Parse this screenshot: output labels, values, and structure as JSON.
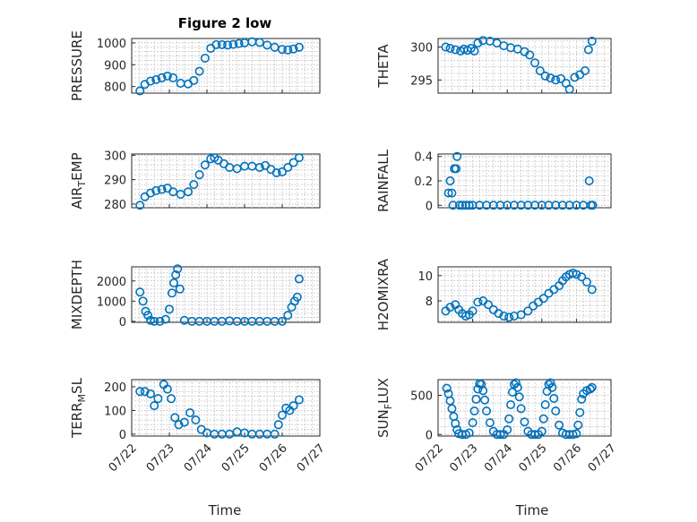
{
  "figure": {
    "title": "Figure 2 low",
    "marker_color": "#0072BD"
  },
  "chart_data": [
    {
      "type": "scatter",
      "title": "Figure 2 low",
      "ylabel": "PRESSURE",
      "sub": "",
      "ylim": [
        770,
        1020
      ],
      "yticks": [
        800,
        900,
        1000
      ],
      "xlim": [
        0,
        5
      ],
      "x": [
        0.22,
        0.35,
        0.5,
        0.65,
        0.8,
        0.95,
        1.1,
        1.3,
        1.5,
        1.65,
        1.8,
        1.95,
        2.1,
        2.25,
        2.4,
        2.55,
        2.7,
        2.85,
        3.0,
        3.2,
        3.4,
        3.6,
        3.8,
        4.0,
        4.15,
        4.3,
        4.45
      ],
      "y": [
        780,
        810,
        825,
        832,
        840,
        848,
        840,
        815,
        812,
        828,
        870,
        930,
        975,
        992,
        992,
        990,
        993,
        997,
        1000,
        1005,
        1002,
        990,
        980,
        970,
        968,
        972,
        980
      ]
    },
    {
      "type": "scatter",
      "ylabel": "THETA",
      "sub": "",
      "ylim": [
        293,
        301.3
      ],
      "yticks": [
        295,
        300
      ],
      "xlim": [
        0,
        5
      ],
      "x": [
        0.22,
        0.35,
        0.5,
        0.65,
        0.75,
        0.85,
        0.95,
        1.05,
        1.15,
        1.3,
        1.5,
        1.7,
        1.9,
        2.1,
        2.3,
        2.5,
        2.65,
        2.8,
        2.95,
        3.1,
        3.25,
        3.4,
        3.55,
        3.7,
        3.8,
        3.95,
        4.1,
        4.25,
        4.35,
        4.45
      ],
      "y": [
        300,
        299.8,
        299.6,
        299.4,
        299.7,
        299.5,
        299.8,
        299.4,
        300.6,
        301.0,
        300.9,
        300.6,
        300.2,
        299.9,
        299.7,
        299.3,
        298.8,
        297.6,
        296.4,
        295.6,
        295.3,
        295.0,
        295.2,
        294.5,
        293.6,
        295.4,
        295.8,
        296.4,
        299.6,
        300.9
      ]
    },
    {
      "type": "scatter",
      "ylabel": "AIR",
      "sub": "T",
      "ylabel_tail": "EMP",
      "ylim": [
        278.5,
        300.5
      ],
      "yticks": [
        280,
        290,
        300
      ],
      "xlim": [
        0,
        5
      ],
      "x": [
        0.22,
        0.35,
        0.5,
        0.65,
        0.8,
        0.95,
        1.1,
        1.3,
        1.5,
        1.65,
        1.8,
        1.95,
        2.1,
        2.2,
        2.3,
        2.45,
        2.6,
        2.8,
        3.0,
        3.2,
        3.4,
        3.55,
        3.7,
        3.85,
        4.0,
        4.15,
        4.3,
        4.45
      ],
      "y": [
        279.5,
        283,
        284.5,
        285.5,
        286,
        286.5,
        285,
        284,
        285,
        288,
        292,
        296,
        298.5,
        299,
        298,
        296.5,
        295,
        294.5,
        295.5,
        295.5,
        295,
        295.8,
        294.2,
        292.8,
        293.2,
        295,
        297,
        299
      ]
    },
    {
      "type": "scatter",
      "ylabel": "RAINFALL",
      "sub": "",
      "ylim": [
        -0.02,
        0.42
      ],
      "yticks": [
        0,
        0.2,
        0.4
      ],
      "xlim": [
        0,
        5
      ],
      "x": [
        0.3,
        0.35,
        0.4,
        0.43,
        0.47,
        0.52,
        0.55,
        0.62,
        0.7,
        0.8,
        0.9,
        1.0,
        1.2,
        1.4,
        1.6,
        1.8,
        2.0,
        2.2,
        2.4,
        2.6,
        2.8,
        3.0,
        3.2,
        3.4,
        3.6,
        3.8,
        4.0,
        4.2,
        4.37,
        4.42,
        4.47
      ],
      "y": [
        0.1,
        0.2,
        0.1,
        0,
        0.3,
        0.3,
        0.4,
        0,
        0,
        0,
        0,
        0,
        0,
        0,
        0,
        0,
        0,
        0,
        0,
        0,
        0,
        0,
        0,
        0,
        0,
        0,
        0,
        0,
        0.2,
        0,
        0
      ]
    },
    {
      "type": "scatter",
      "ylabel": "MIXDEPTH",
      "sub": "",
      "ylim": [
        -50,
        2700
      ],
      "yticks": [
        0,
        1000,
        2000
      ],
      "xlim": [
        0,
        5
      ],
      "x": [
        0.22,
        0.3,
        0.37,
        0.43,
        0.5,
        0.6,
        0.75,
        0.9,
        1.0,
        1.07,
        1.12,
        1.17,
        1.22,
        1.28,
        1.4,
        1.6,
        1.8,
        2.0,
        2.2,
        2.4,
        2.6,
        2.8,
        3.0,
        3.2,
        3.4,
        3.6,
        3.8,
        4.0,
        4.15,
        4.25,
        4.33,
        4.4,
        4.45
      ],
      "y": [
        1450,
        1000,
        500,
        300,
        50,
        0,
        0,
        100,
        600,
        1400,
        1900,
        2300,
        2600,
        1600,
        50,
        0,
        0,
        0,
        0,
        0,
        20,
        0,
        0,
        0,
        0,
        0,
        0,
        0,
        300,
        700,
        1000,
        1200,
        2100
      ]
    },
    {
      "type": "scatter",
      "ylabel": "H2OMIXRA",
      "sub": "",
      "ylim": [
        6.3,
        10.7
      ],
      "yticks": [
        8,
        10
      ],
      "xlim": [
        0,
        5
      ],
      "x": [
        0.22,
        0.35,
        0.5,
        0.6,
        0.7,
        0.8,
        0.9,
        1.0,
        1.15,
        1.3,
        1.45,
        1.6,
        1.75,
        1.9,
        2.05,
        2.2,
        2.4,
        2.6,
        2.75,
        2.9,
        3.05,
        3.2,
        3.35,
        3.5,
        3.6,
        3.7,
        3.8,
        3.9,
        4.0,
        4.15,
        4.3,
        4.45
      ],
      "y": [
        7.2,
        7.5,
        7.7,
        7.3,
        7.0,
        6.8,
        6.9,
        7.2,
        7.9,
        8.0,
        7.7,
        7.3,
        7.0,
        6.8,
        6.7,
        6.8,
        6.9,
        7.2,
        7.6,
        7.9,
        8.2,
        8.6,
        8.9,
        9.2,
        9.6,
        9.9,
        10.1,
        10.2,
        10.1,
        9.9,
        9.5,
        8.9
      ]
    },
    {
      "type": "scatter",
      "ylabel": "TERR",
      "sub": "M",
      "ylabel_tail": "SL",
      "ylim": [
        -8,
        230
      ],
      "yticks": [
        0,
        100,
        200
      ],
      "xlim": [
        0,
        5
      ],
      "x": [
        0.22,
        0.35,
        0.5,
        0.6,
        0.7,
        0.85,
        0.95,
        1.05,
        1.15,
        1.25,
        1.4,
        1.55,
        1.7,
        1.85,
        2.0,
        2.2,
        2.4,
        2.6,
        2.8,
        3.0,
        3.2,
        3.4,
        3.6,
        3.8,
        3.9,
        4.0,
        4.1,
        4.2,
        4.3,
        4.45
      ],
      "y": [
        180,
        180,
        170,
        120,
        150,
        210,
        190,
        150,
        70,
        40,
        50,
        90,
        60,
        20,
        5,
        0,
        0,
        0,
        10,
        5,
        0,
        0,
        0,
        0,
        40,
        80,
        110,
        100,
        120,
        145
      ]
    },
    {
      "type": "scatter",
      "ylabel": "SUN",
      "sub": "F",
      "ylabel_tail": "LUX",
      "ylim": [
        -20,
        700
      ],
      "yticks": [
        0,
        500
      ],
      "xlim": [
        0,
        5
      ],
      "x": [
        0.25,
        0.3,
        0.35,
        0.4,
        0.45,
        0.5,
        0.55,
        0.6,
        0.7,
        0.8,
        0.9,
        1.0,
        1.05,
        1.1,
        1.15,
        1.2,
        1.25,
        1.3,
        1.35,
        1.4,
        1.5,
        1.6,
        1.7,
        1.8,
        1.9,
        2.0,
        2.05,
        2.1,
        2.15,
        2.2,
        2.25,
        2.3,
        2.35,
        2.4,
        2.5,
        2.6,
        2.7,
        2.8,
        2.9,
        3.0,
        3.05,
        3.1,
        3.15,
        3.2,
        3.25,
        3.3,
        3.35,
        3.4,
        3.5,
        3.6,
        3.7,
        3.8,
        3.9,
        4.0,
        4.05,
        4.1,
        4.15,
        4.2,
        4.3,
        4.4,
        4.45
      ],
      "y": [
        590,
        520,
        430,
        330,
        230,
        140,
        60,
        10,
        0,
        0,
        20,
        150,
        300,
        450,
        580,
        650,
        640,
        560,
        440,
        300,
        150,
        40,
        0,
        0,
        0,
        60,
        200,
        380,
        540,
        640,
        660,
        600,
        480,
        330,
        160,
        40,
        0,
        0,
        0,
        40,
        200,
        380,
        550,
        640,
        660,
        600,
        460,
        300,
        120,
        20,
        0,
        0,
        0,
        10,
        120,
        280,
        450,
        520,
        560,
        580,
        600
      ]
    }
  ],
  "xaxis": {
    "ticks": [
      0,
      1,
      2,
      3,
      4,
      5
    ],
    "tick_labels": [
      "07/22",
      "07/23",
      "07/24",
      "07/25",
      "07/26",
      "07/27"
    ],
    "label": "Time"
  }
}
